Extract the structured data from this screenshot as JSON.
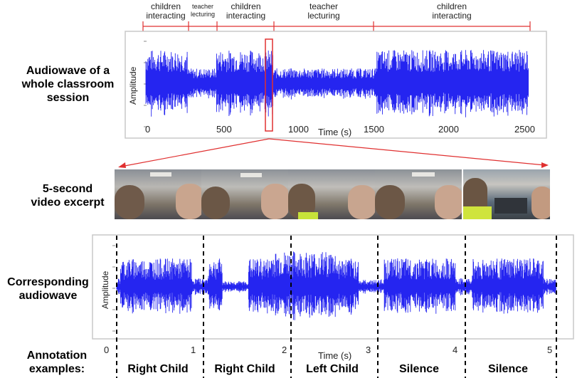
{
  "side_labels": {
    "audiowave_whole": "Audiowave of a\nwhole classroom\nsession",
    "video_excerpt": "5-second\nvideo excerpt",
    "corresponding": "Corresponding\naudiowave",
    "annotation": "Annotation\nexamples:"
  },
  "top_chart": {
    "segments": [
      {
        "label": "children\ninteracting"
      },
      {
        "label": "teacher\nlecturing"
      },
      {
        "label": "children\ninteracting"
      },
      {
        "label": "teacher\nlecturing"
      },
      {
        "label": "children\ninteracting"
      }
    ],
    "ylabel": "Amplitude",
    "xlabel": "Time (s)",
    "ticks": [
      "0",
      "500",
      "1000",
      "1500",
      "2000",
      "2500"
    ]
  },
  "bottom_chart": {
    "ylabel": "Amplitude",
    "xlabel": "Time (s)",
    "ticks": [
      "0",
      "1",
      "2",
      "3",
      "4",
      "5"
    ]
  },
  "annotations": [
    "Right Child",
    "Right Child",
    "Left Child",
    "Silence",
    "Silence"
  ],
  "colors": {
    "wave": "#0000ee",
    "highlight": "#e03030",
    "dashed": "#000000"
  },
  "chart_data": [
    {
      "type": "area",
      "title": "",
      "xlabel": "Time (s)",
      "ylabel": "Amplitude",
      "xlim": [
        0,
        2550
      ],
      "x_ticks": [
        0,
        500,
        1000,
        1500,
        2000,
        2500
      ],
      "segments": [
        {
          "label": "children interacting",
          "start": 0,
          "end": 270
        },
        {
          "label": "teacher lecturing",
          "start": 270,
          "end": 460
        },
        {
          "label": "children interacting",
          "start": 460,
          "end": 830
        },
        {
          "label": "teacher lecturing",
          "start": 830,
          "end": 1500
        },
        {
          "label": "children interacting",
          "start": 1500,
          "end": 2550
        }
      ],
      "highlighted_window_s": [
        760,
        830
      ]
    },
    {
      "type": "area",
      "title": "",
      "xlabel": "Time (s)",
      "ylabel": "Amplitude",
      "xlim": [
        0,
        5.1
      ],
      "x_ticks": [
        0,
        1,
        2,
        3,
        4,
        5
      ],
      "annotation_intervals": [
        {
          "label": "Right Child",
          "start": 0,
          "end": 1
        },
        {
          "label": "Right Child",
          "start": 1,
          "end": 2
        },
        {
          "label": "Left Child",
          "start": 2,
          "end": 3
        },
        {
          "label": "Silence",
          "start": 3,
          "end": 4
        },
        {
          "label": "Silence",
          "start": 4,
          "end": 5
        }
      ]
    }
  ]
}
